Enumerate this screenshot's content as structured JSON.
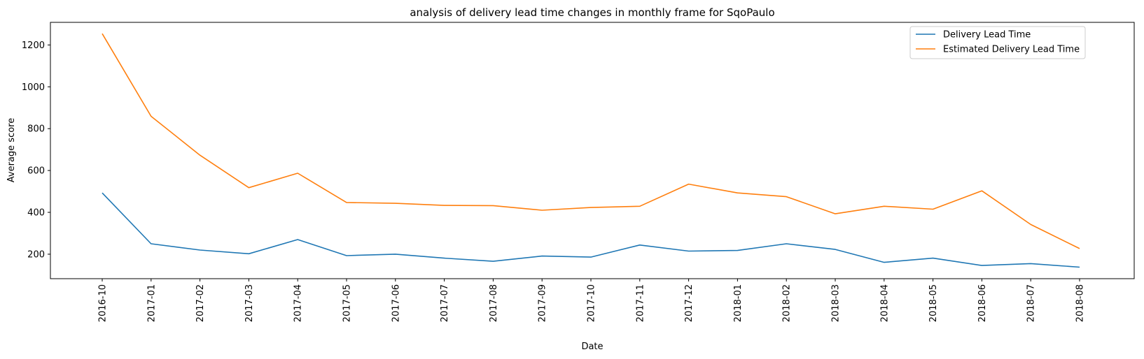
{
  "chart_data": {
    "type": "line",
    "title": "analysis of delivery lead time changes in monthly frame for SqoPaulo",
    "xlabel": "Date",
    "ylabel": "Average score",
    "categories": [
      "2016-10",
      "2017-01",
      "2017-02",
      "2017-03",
      "2017-04",
      "2017-05",
      "2017-06",
      "2017-07",
      "2017-08",
      "2017-09",
      "2017-10",
      "2017-11",
      "2017-12",
      "2018-01",
      "2018-02",
      "2018-03",
      "2018-04",
      "2018-05",
      "2018-06",
      "2018-07",
      "2018-08"
    ],
    "yticks": [
      200,
      400,
      600,
      800,
      1000,
      1200
    ],
    "ylim": [
      83,
      1308
    ],
    "grid": false,
    "legend_position": "top-right",
    "series": [
      {
        "name": "Delivery Lead Time",
        "color": "#1f77b4",
        "values": [
          493,
          250,
          220,
          202,
          270,
          193,
          200,
          181,
          166,
          191,
          186,
          244,
          215,
          218,
          250,
          223,
          161,
          181,
          146,
          155,
          138
        ]
      },
      {
        "name": "Estimated Delivery Lead Time",
        "color": "#ff7f0e",
        "values": [
          1254,
          859,
          673,
          518,
          587,
          447,
          443,
          433,
          432,
          410,
          423,
          429,
          535,
          493,
          475,
          393,
          429,
          415,
          503,
          342,
          227
        ]
      }
    ]
  }
}
